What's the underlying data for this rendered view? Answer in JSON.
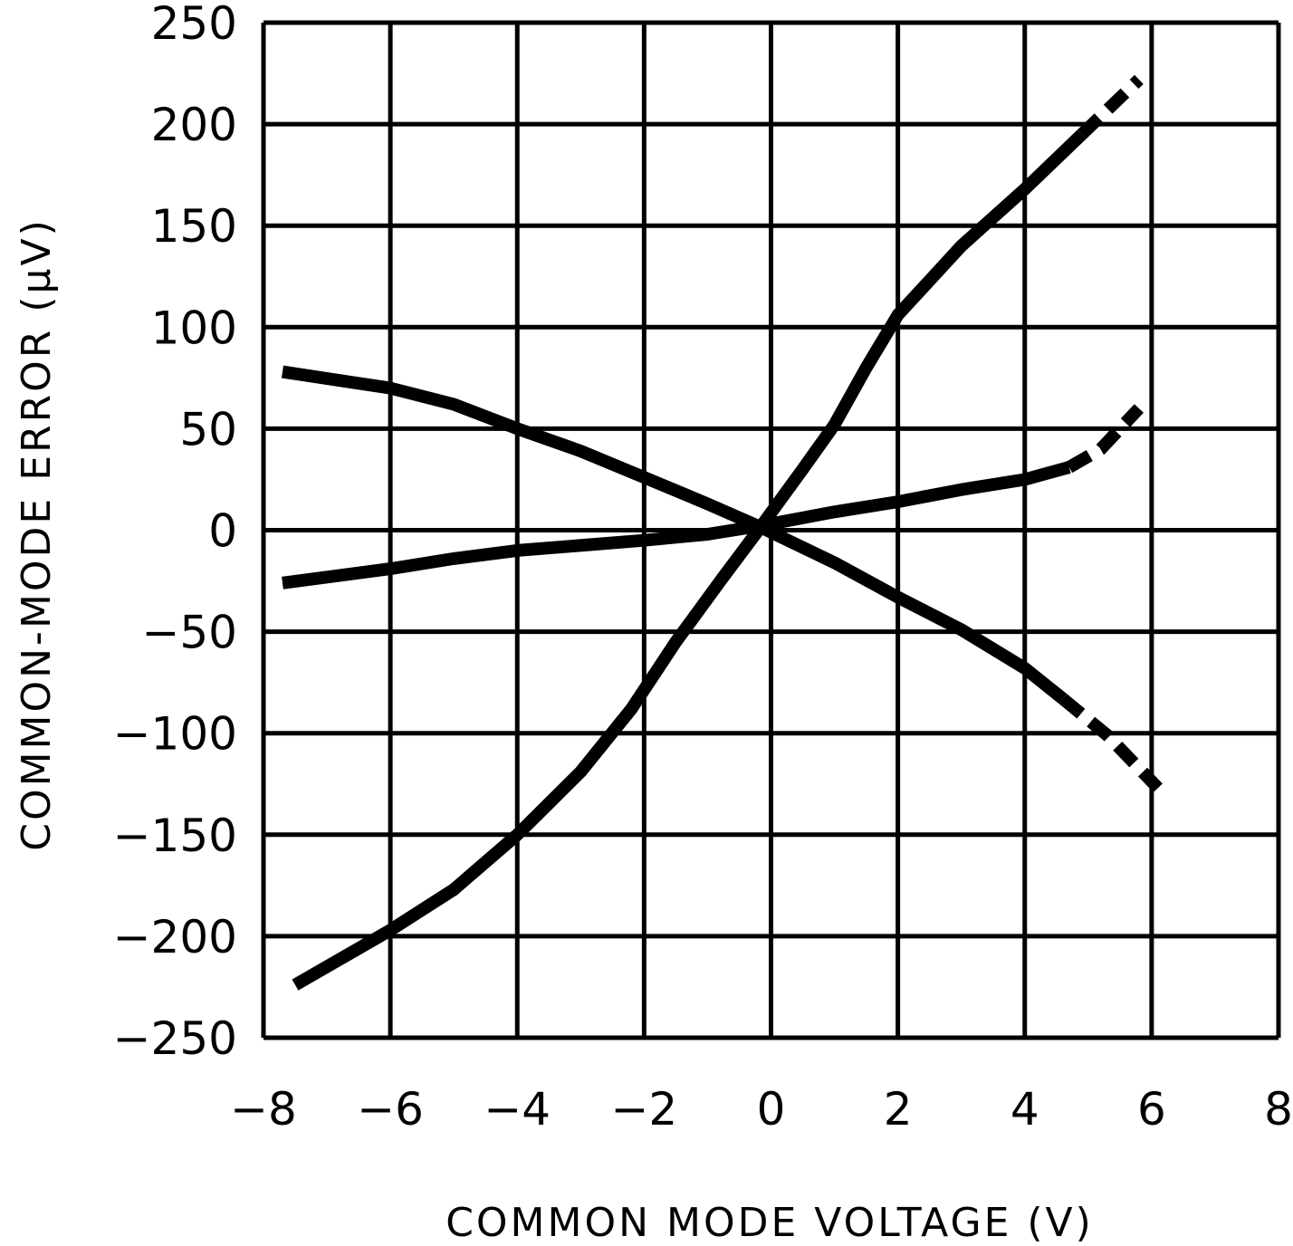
{
  "chart_data": {
    "type": "line",
    "title": "",
    "xlabel": "COMMON MODE VOLTAGE (V)",
    "ylabel": "COMMON-MODE ERROR (μV)",
    "xlim": [
      -8,
      8
    ],
    "ylim": [
      -250,
      250
    ],
    "xticks": [
      -8,
      -6,
      -4,
      -2,
      0,
      2,
      4,
      6,
      8
    ],
    "yticks": [
      250,
      200,
      150,
      100,
      50,
      0,
      -50,
      -100,
      -150,
      -200,
      -250
    ],
    "grid": true,
    "legend": null,
    "series": [
      {
        "name": "curve-steep-rising",
        "solid": {
          "x": [
            -7.5,
            -6,
            -5,
            -4,
            -3,
            -2.2,
            -1.5,
            -0.8,
            -0.2,
            0.5,
            1,
            1.5,
            2,
            3,
            4,
            4.9
          ],
          "y": [
            -224,
            -197,
            -177,
            -150,
            -119,
            -88,
            -55,
            -25,
            0,
            30,
            52,
            80,
            106,
            140,
            168,
            195
          ]
        },
        "dashed": {
          "x": [
            4.9,
            5.8
          ],
          "y": [
            195,
            222
          ]
        }
      },
      {
        "name": "curve-shallow-rising",
        "solid": {
          "x": [
            -7.7,
            -6,
            -5,
            -4,
            -2,
            -1,
            -0.2,
            1,
            2,
            3,
            4,
            4.7
          ],
          "y": [
            -26,
            -19,
            -14,
            -10,
            -5,
            -2,
            2,
            9,
            14,
            20,
            25,
            31
          ]
        },
        "dashed": {
          "x": [
            4.7,
            5.2,
            5.8
          ],
          "y": [
            31,
            40,
            60
          ]
        }
      },
      {
        "name": "curve-falling",
        "solid": {
          "x": [
            -7.7,
            -6,
            -5,
            -4,
            -3,
            -2,
            -1,
            -0.2,
            1,
            2,
            3,
            4,
            4.6
          ],
          "y": [
            78,
            70,
            62,
            50,
            39,
            26,
            13,
            2,
            -16,
            -33,
            -49,
            -68,
            -83
          ]
        },
        "dashed": {
          "x": [
            4.6,
            5.3,
            6.1
          ],
          "y": [
            -83,
            -101,
            -127
          ]
        }
      }
    ]
  },
  "colors": {
    "line": "#000000",
    "grid": "#000000",
    "background": "#ffffff"
  }
}
